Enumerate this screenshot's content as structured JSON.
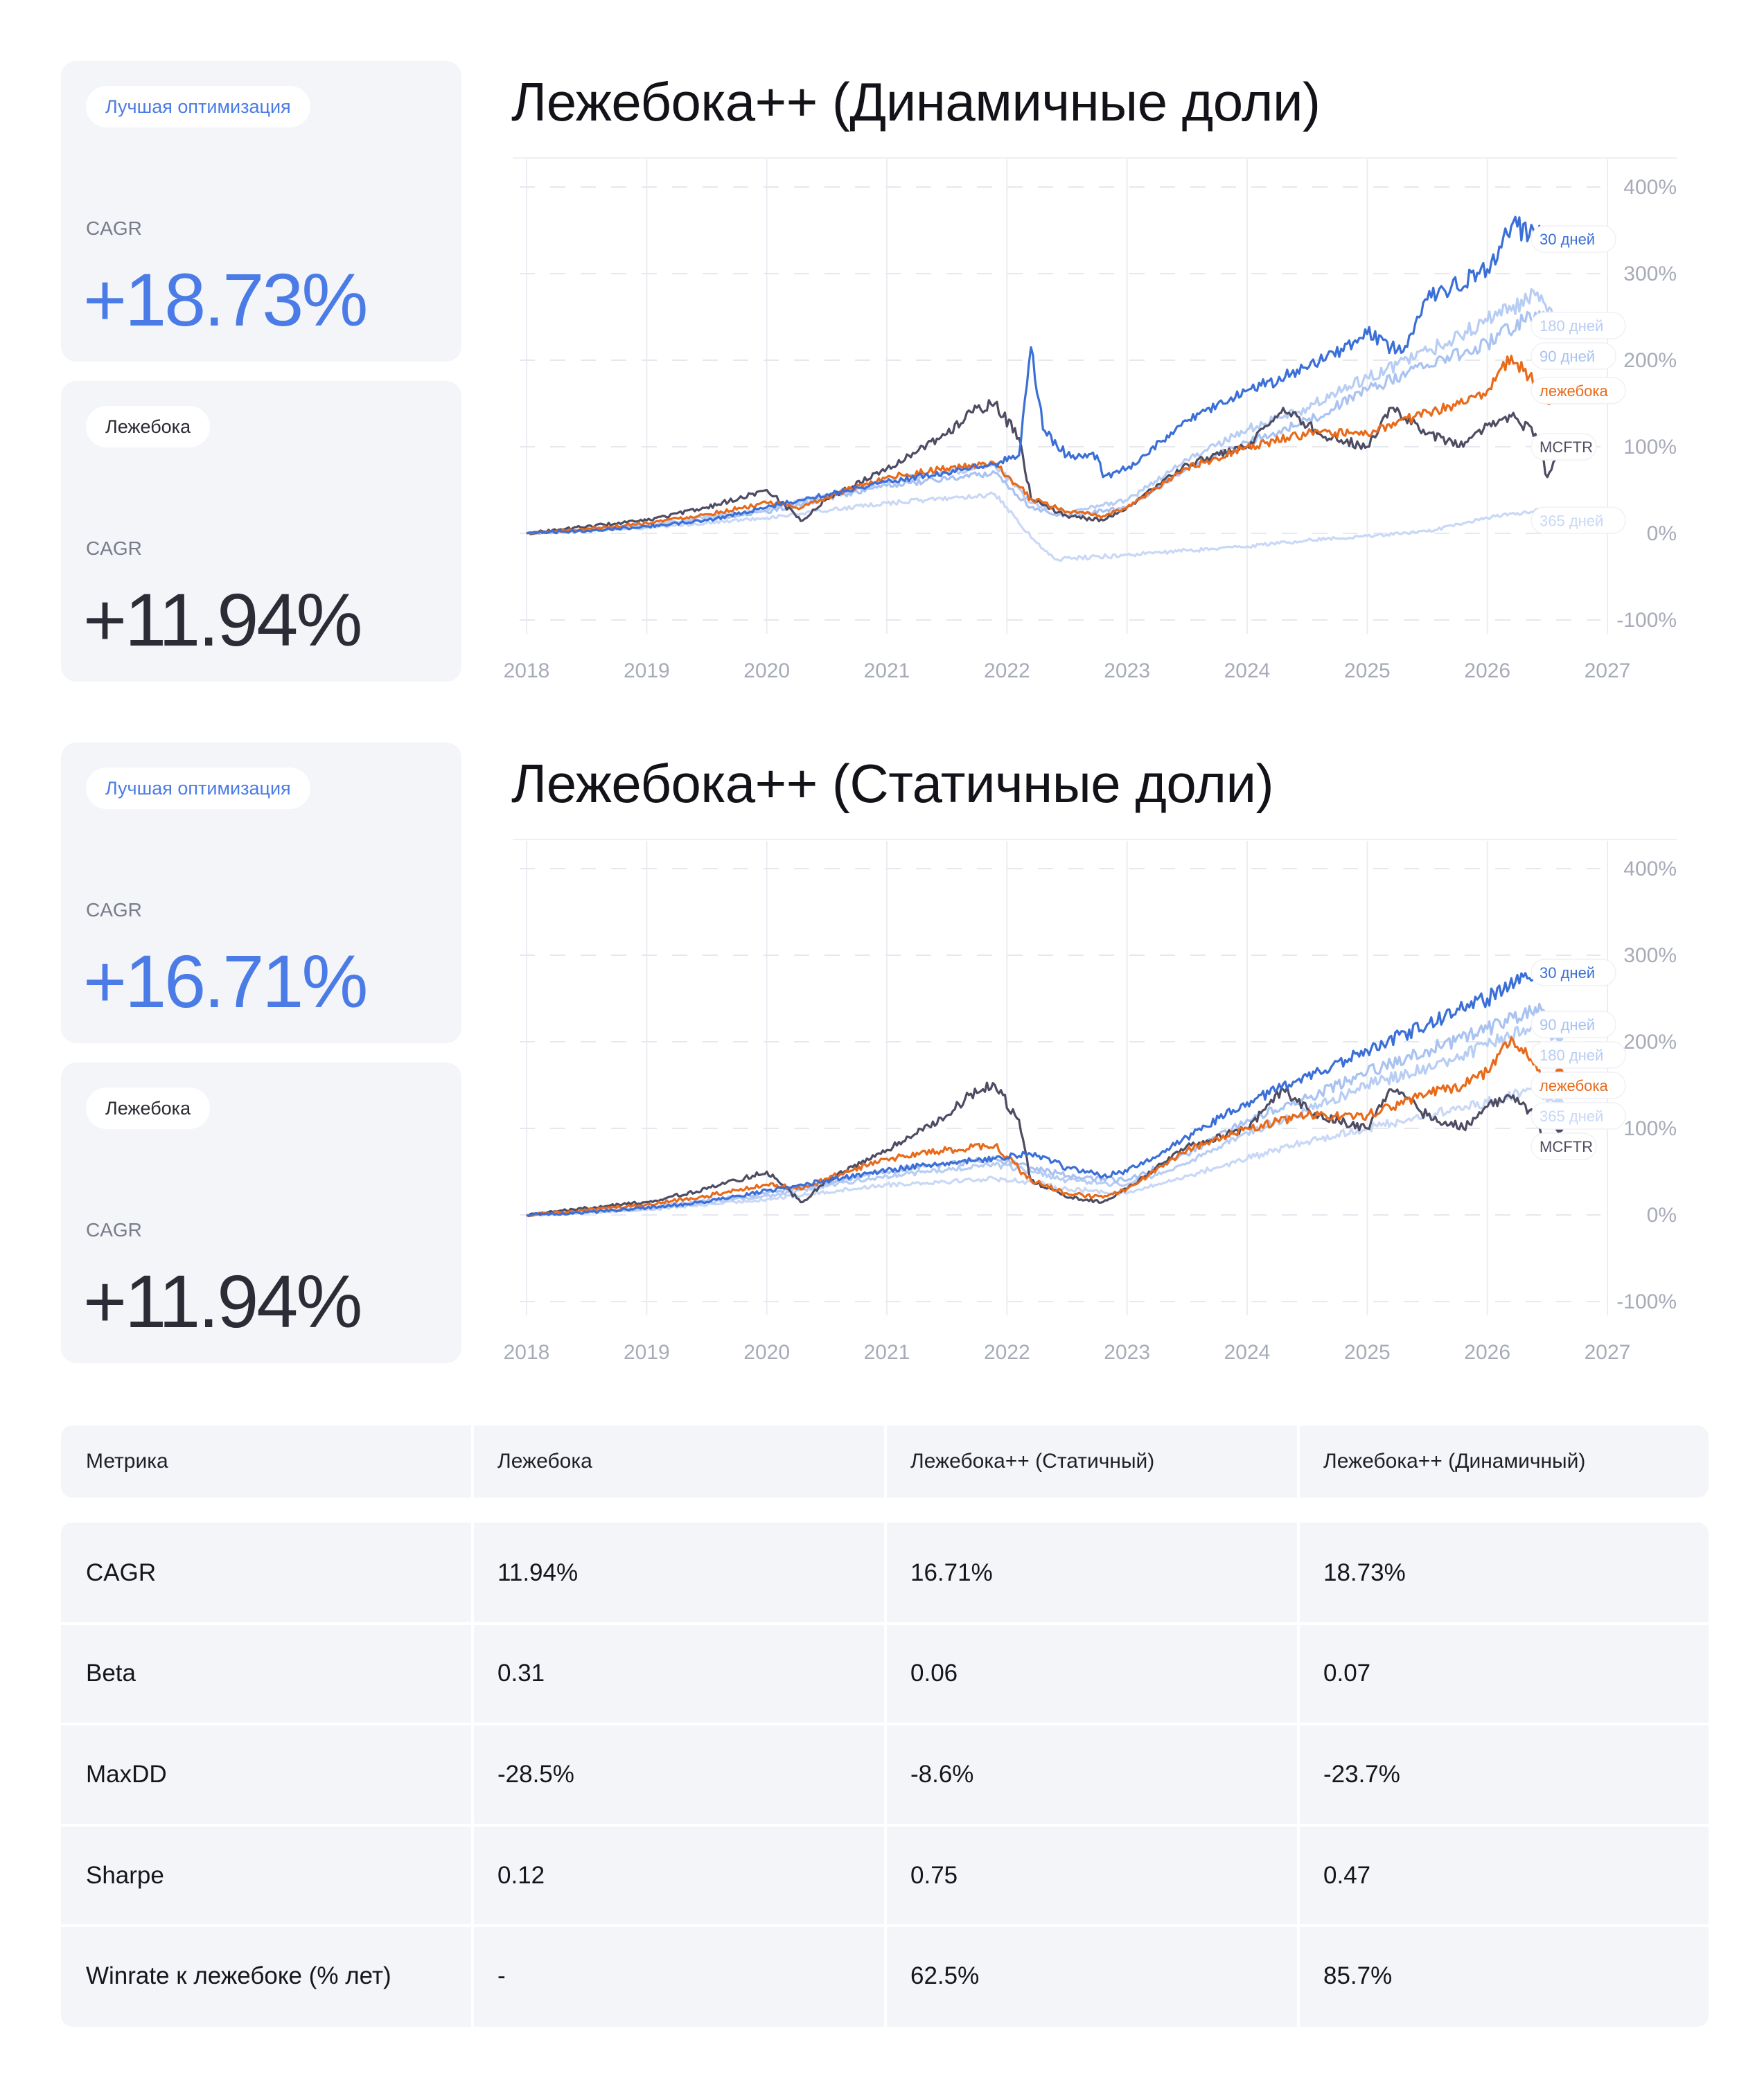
{
  "panels": [
    {
      "best_label": "Лучшая оптимизация",
      "best_cagr_label": "CAGR",
      "best_cagr": "+18.73%",
      "base_label": "Лежебока",
      "base_cagr_label": "CAGR",
      "base_cagr": "+11.94%"
    },
    {
      "best_label": "Лучшая оптимизация",
      "best_cagr_label": "CAGR",
      "best_cagr": "+16.71%",
      "base_label": "Лежебока",
      "base_cagr_label": "CAGR",
      "base_cagr": "+11.94%"
    }
  ],
  "chart_data": [
    {
      "type": "line",
      "title": "Лежебока++ (Динамичные доли)",
      "xlabel": "",
      "ylabel": "",
      "x_ticks": [
        "2018",
        "2019",
        "2020",
        "2021",
        "2022",
        "2023",
        "2024",
        "2025",
        "2026",
        "2027"
      ],
      "y_ticks": [
        "400%",
        "300%",
        "200%",
        "100%",
        "0%",
        "-100%"
      ],
      "xlim": [
        2018,
        2027
      ],
      "ylim": [
        -100,
        400
      ],
      "grid": true,
      "series": [
        {
          "name": "365 дней",
          "color": "#c9d8f6",
          "x": [
            2018.0,
            2019.0,
            2020.0,
            2021.0,
            2021.9,
            2022.2,
            2022.4,
            2023.0,
            2023.5,
            2024.0,
            2024.5,
            2025.0,
            2025.5,
            2026.0,
            2026.5,
            2026.6
          ],
          "y": [
            0,
            6,
            18,
            35,
            45,
            -5,
            -30,
            -25,
            -20,
            -15,
            -8,
            -3,
            2,
            18,
            28,
            15
          ]
        },
        {
          "name": "90 дней",
          "color": "#a9c2f1",
          "x": [
            2018.0,
            2019.0,
            2020.0,
            2021.0,
            2021.9,
            2022.2,
            2022.5,
            2023.0,
            2023.5,
            2024.0,
            2024.5,
            2025.0,
            2025.5,
            2026.0,
            2026.4,
            2026.6
          ],
          "y": [
            0,
            8,
            25,
            55,
            70,
            30,
            20,
            30,
            75,
            105,
            130,
            165,
            195,
            220,
            255,
            235
          ]
        },
        {
          "name": "180 дней",
          "color": "#b8cdf4",
          "x": [
            2018.0,
            2019.0,
            2020.0,
            2021.0,
            2021.9,
            2022.2,
            2022.5,
            2023.0,
            2023.5,
            2024.0,
            2024.5,
            2025.0,
            2025.5,
            2026.0,
            2026.4,
            2026.6
          ],
          "y": [
            0,
            9,
            28,
            60,
            78,
            35,
            25,
            38,
            85,
            120,
            145,
            180,
            210,
            245,
            275,
            240
          ]
        },
        {
          "name": "MCFTR",
          "color": "#4e4c63",
          "x": [
            2018.0,
            2018.5,
            2019.0,
            2019.5,
            2020.0,
            2020.3,
            2020.5,
            2021.0,
            2021.5,
            2021.7,
            2021.9,
            2022.1,
            2022.2,
            2022.5,
            2022.8,
            2023.0,
            2023.5,
            2024.0,
            2024.3,
            2024.6,
            2025.0,
            2025.2,
            2025.5,
            2025.8,
            2026.0,
            2026.2,
            2026.4,
            2026.5,
            2026.6
          ],
          "y": [
            0,
            8,
            15,
            30,
            50,
            15,
            40,
            75,
            115,
            140,
            150,
            110,
            40,
            20,
            15,
            30,
            80,
            100,
            145,
            115,
            100,
            145,
            115,
            100,
            125,
            135,
            115,
            65,
            100
          ]
        },
        {
          "name": "лежебока",
          "color": "#e86a1a",
          "x": [
            2018.0,
            2018.5,
            2019.0,
            2019.5,
            2020.0,
            2020.3,
            2020.5,
            2021.0,
            2021.5,
            2021.9,
            2022.2,
            2022.5,
            2022.8,
            2023.0,
            2023.5,
            2024.0,
            2024.5,
            2025.0,
            2025.5,
            2025.8,
            2026.0,
            2026.2,
            2026.4,
            2026.5,
            2026.6
          ],
          "y": [
            0,
            5,
            12,
            22,
            35,
            30,
            42,
            65,
            75,
            80,
            40,
            25,
            20,
            30,
            75,
            100,
            115,
            115,
            140,
            150,
            165,
            205,
            175,
            150,
            165
          ]
        },
        {
          "name": "30 дней",
          "color": "#3b6fd8",
          "x": [
            2018.0,
            2018.5,
            2019.0,
            2019.5,
            2020.0,
            2020.5,
            2021.0,
            2021.5,
            2021.9,
            2022.1,
            2022.2,
            2022.3,
            2022.5,
            2022.75,
            2022.8,
            2023.0,
            2023.5,
            2024.0,
            2024.5,
            2025.0,
            2025.3,
            2025.5,
            2026.0,
            2026.2,
            2026.5,
            2026.6
          ],
          "y": [
            0,
            3,
            8,
            15,
            30,
            45,
            60,
            70,
            80,
            90,
            215,
            120,
            90,
            90,
            65,
            75,
            130,
            165,
            190,
            230,
            210,
            270,
            305,
            355,
            340,
            340
          ]
        }
      ]
    },
    {
      "type": "line",
      "title": "Лежебока++ (Статичные доли)",
      "xlabel": "",
      "ylabel": "",
      "x_ticks": [
        "2018",
        "2019",
        "2020",
        "2021",
        "2022",
        "2023",
        "2024",
        "2025",
        "2026",
        "2027"
      ],
      "y_ticks": [
        "400%",
        "300%",
        "200%",
        "100%",
        "0%",
        "-100%"
      ],
      "xlim": [
        2018,
        2027
      ],
      "ylim": [
        -100,
        400
      ],
      "grid": true,
      "series": [
        {
          "name": "365 дней",
          "color": "#c9d8f6",
          "x": [
            2018.0,
            2019.0,
            2020.0,
            2021.0,
            2021.9,
            2022.2,
            2022.5,
            2023.0,
            2023.5,
            2024.0,
            2024.5,
            2025.0,
            2025.5,
            2026.0,
            2026.4,
            2026.6
          ],
          "y": [
            0,
            6,
            18,
            35,
            42,
            38,
            30,
            25,
            45,
            65,
            85,
            100,
            115,
            130,
            145,
            130
          ]
        },
        {
          "name": "180 дней",
          "color": "#b8cdf4",
          "x": [
            2018.0,
            2019.0,
            2020.0,
            2021.0,
            2021.9,
            2022.2,
            2022.5,
            2023.0,
            2023.5,
            2024.0,
            2024.5,
            2025.0,
            2025.5,
            2026.0,
            2026.4,
            2026.6
          ],
          "y": [
            0,
            7,
            22,
            45,
            58,
            50,
            40,
            35,
            60,
            95,
            120,
            150,
            170,
            195,
            220,
            205
          ]
        },
        {
          "name": "90 дней",
          "color": "#a9c2f1",
          "x": [
            2018.0,
            2019.0,
            2020.0,
            2021.0,
            2021.9,
            2022.2,
            2022.5,
            2023.0,
            2023.5,
            2024.0,
            2024.5,
            2025.0,
            2025.5,
            2026.0,
            2026.4,
            2026.6
          ],
          "y": [
            0,
            8,
            25,
            50,
            65,
            55,
            45,
            40,
            70,
            110,
            135,
            165,
            190,
            215,
            240,
            220
          ]
        },
        {
          "name": "MCFTR",
          "color": "#4e4c63",
          "x": [
            2018.0,
            2018.5,
            2019.0,
            2019.5,
            2020.0,
            2020.3,
            2020.5,
            2021.0,
            2021.5,
            2021.7,
            2021.9,
            2022.1,
            2022.2,
            2022.5,
            2022.8,
            2023.0,
            2023.5,
            2024.0,
            2024.3,
            2024.6,
            2025.0,
            2025.2,
            2025.5,
            2025.8,
            2026.0,
            2026.2,
            2026.4,
            2026.5,
            2026.6
          ],
          "y": [
            0,
            8,
            15,
            30,
            50,
            15,
            40,
            75,
            115,
            140,
            150,
            110,
            40,
            20,
            15,
            30,
            80,
            100,
            145,
            115,
            100,
            145,
            115,
            100,
            125,
            135,
            115,
            65,
            100
          ]
        },
        {
          "name": "лежебока",
          "color": "#e86a1a",
          "x": [
            2018.0,
            2018.5,
            2019.0,
            2019.5,
            2020.0,
            2020.3,
            2020.5,
            2021.0,
            2021.5,
            2021.9,
            2022.2,
            2022.5,
            2022.8,
            2023.0,
            2023.5,
            2024.0,
            2024.5,
            2025.0,
            2025.5,
            2025.8,
            2026.0,
            2026.2,
            2026.4,
            2026.5,
            2026.6
          ],
          "y": [
            0,
            5,
            12,
            22,
            35,
            30,
            42,
            65,
            75,
            80,
            40,
            25,
            20,
            30,
            75,
            100,
            115,
            115,
            140,
            150,
            165,
            205,
            175,
            150,
            165
          ]
        },
        {
          "name": "30 дней",
          "color": "#3b6fd8",
          "x": [
            2018.0,
            2018.5,
            2019.0,
            2019.5,
            2020.0,
            2020.5,
            2021.0,
            2021.5,
            2021.9,
            2022.2,
            2022.5,
            2022.8,
            2023.0,
            2023.5,
            2024.0,
            2024.5,
            2025.0,
            2025.5,
            2026.0,
            2026.3,
            2026.6
          ],
          "y": [
            0,
            3,
            8,
            15,
            28,
            40,
            52,
            60,
            65,
            70,
            55,
            45,
            50,
            90,
            130,
            160,
            190,
            220,
            250,
            275,
            280
          ]
        }
      ]
    }
  ],
  "labels_order": [
    [
      "30 дней",
      "180 дней",
      "90 дней",
      "лежебока",
      "MCFTR",
      "365 дней"
    ],
    [
      "30 дней",
      "90 дней",
      "180 дней",
      "лежебока",
      "365 дней",
      "MCFTR"
    ]
  ],
  "table": {
    "headers": [
      "Метрика",
      "Лежебока",
      "Лежебока++ (Статичный)",
      "Лежебока++ (Динамичный)"
    ],
    "rows": [
      [
        "CAGR",
        "11.94%",
        "16.71%",
        "18.73%"
      ],
      [
        "Beta",
        "0.31",
        "0.06",
        "0.07"
      ],
      [
        "MaxDD",
        "-28.5%",
        "-8.6%",
        "-23.7%"
      ],
      [
        "Sharpe",
        "0.12",
        "0.75",
        "0.47"
      ],
      [
        "Winrate к лежебоке (% лет)",
        "-",
        "62.5%",
        "85.7%"
      ]
    ]
  }
}
